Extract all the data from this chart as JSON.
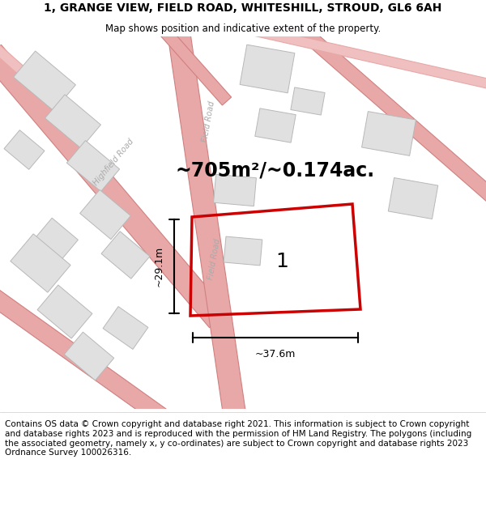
{
  "title": "1, GRANGE VIEW, FIELD ROAD, WHITESHILL, STROUD, GL6 6AH",
  "subtitle": "Map shows position and indicative extent of the property.",
  "footer": "Contains OS data © Crown copyright and database right 2021. This information is subject to Crown copyright and database rights 2023 and is reproduced with the permission of HM Land Registry. The polygons (including the associated geometry, namely x, y co-ordinates) are subject to Crown copyright and database rights 2023 Ordnance Survey 100026316.",
  "area_text": "~705m²/~0.174ac.",
  "dim_width": "~37.6m",
  "dim_height": "~29.1m",
  "map_bg": "#f7f7f7",
  "road_color": "#e8a8a8",
  "road_edge": "#d08080",
  "building_fill": "#e0e0e0",
  "building_edge": "#b8b8b8",
  "plot_color": "#cc0000",
  "road_label_color": "#aaaaaa",
  "title_fontsize": 10,
  "subtitle_fontsize": 8.5,
  "footer_fontsize": 7.5,
  "area_fontsize": 17,
  "dim_fontsize": 9,
  "plot_num_fontsize": 18
}
